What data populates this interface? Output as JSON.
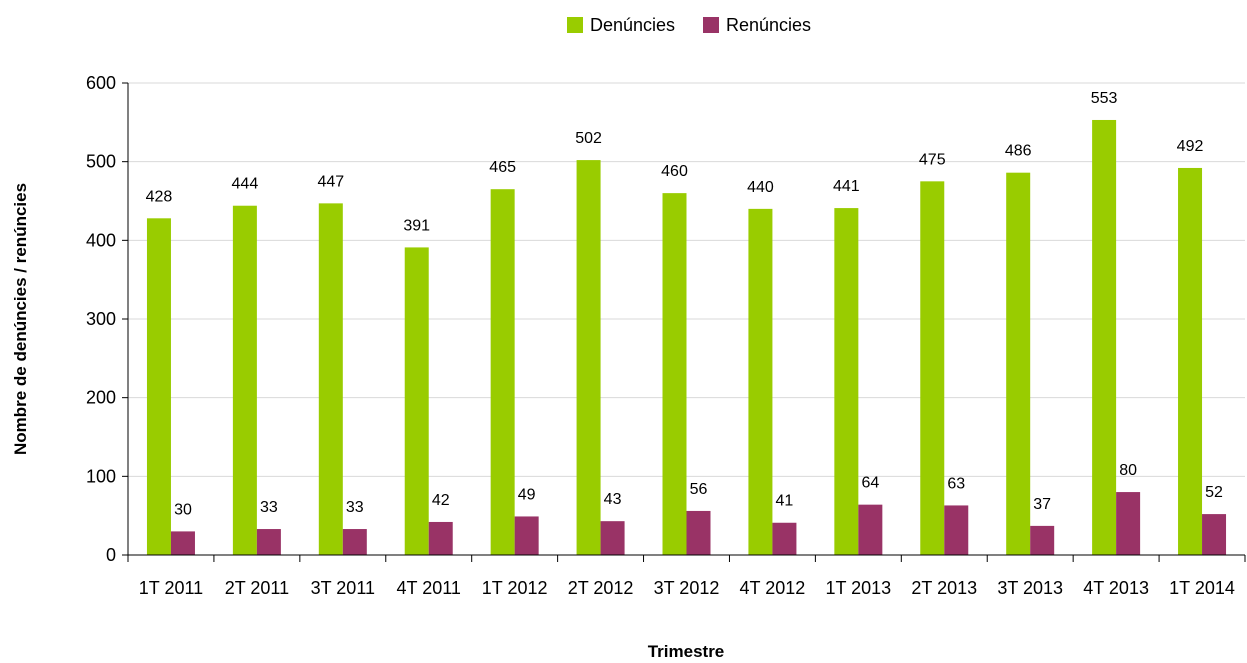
{
  "chart_data": {
    "type": "bar",
    "categories": [
      "1T 2011",
      "2T 2011",
      "3T 2011",
      "4T 2011",
      "1T 2012",
      "2T 2012",
      "3T 2012",
      "4T 2012",
      "1T 2013",
      "2T 2013",
      "3T 2013",
      "4T 2013",
      "1T 2014"
    ],
    "series": [
      {
        "name": "Denúncies",
        "color": "#99cc00",
        "values": [
          428,
          444,
          447,
          391,
          465,
          502,
          460,
          440,
          441,
          475,
          486,
          553,
          492
        ]
      },
      {
        "name": "Renúncies",
        "color": "#993366",
        "values": [
          30,
          33,
          33,
          42,
          49,
          43,
          56,
          41,
          64,
          63,
          37,
          80,
          52
        ]
      }
    ],
    "xlabel": "Trimestre",
    "ylabel": "Nombre de denúncies / renúncies",
    "ylim": [
      0,
      600
    ],
    "yticks": [
      0,
      100,
      200,
      300,
      400,
      500,
      600
    ],
    "grid": true,
    "legend_position": "top-center"
  }
}
